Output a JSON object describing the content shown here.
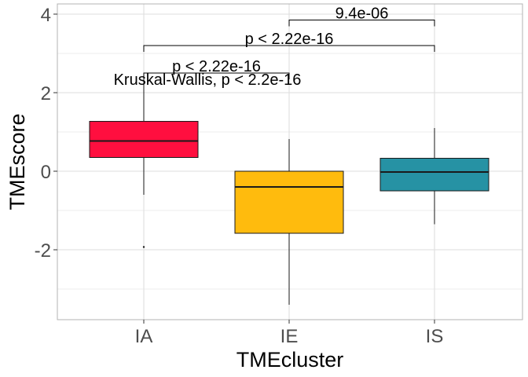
{
  "chart_data": {
    "type": "box",
    "xlabel": "TMEcluster",
    "ylabel": "TMEscore",
    "categories": [
      "IA",
      "IE",
      "IS"
    ],
    "ylim": [
      -3.8,
      4.2
    ],
    "yticks": [
      -2,
      0,
      2,
      4
    ],
    "ytick_labels": [
      "-2",
      "0",
      "2",
      "4"
    ],
    "grid": true,
    "boxes": [
      {
        "category": "IA",
        "color": "#ff0f3f",
        "whisker_low": -0.6,
        "q1": 0.35,
        "median": 0.77,
        "q3": 1.27,
        "whisker_high": 2.5,
        "outliers": [
          -1.93
        ]
      },
      {
        "category": "IE",
        "color": "#ffbb0d",
        "whisker_low": -3.4,
        "q1": -1.58,
        "median": -0.4,
        "q3": 0.0,
        "whisker_high": 0.82,
        "outliers": []
      },
      {
        "category": "IS",
        "color": "#2692a4",
        "whisker_low": -1.35,
        "q1": -0.5,
        "median": -0.02,
        "q3": 0.33,
        "whisker_high": 1.1,
        "outliers": []
      }
    ],
    "comparisons": [
      {
        "from": "IE",
        "to": "IS",
        "label": "9.4e-06",
        "level": 3.85
      },
      {
        "from": "IA",
        "to": "IS",
        "label": "p < 2.22e-16",
        "level": 3.2
      },
      {
        "from": "IA",
        "to": "IE",
        "label": "p < 2.22e-16",
        "level": 2.5
      }
    ],
    "global_test": "Kruskal-Wallis, p < 2.2e-16"
  }
}
